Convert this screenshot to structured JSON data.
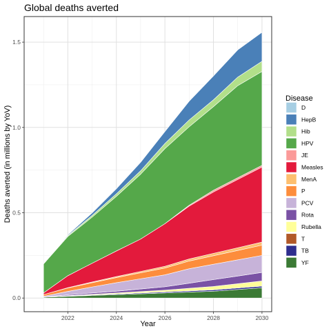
{
  "chart_data": {
    "type": "area",
    "stacked": true,
    "title": "Global deaths averted",
    "xlabel": "Year",
    "ylabel": "Deaths averted (in millions by YoV)",
    "x": [
      2021,
      2022,
      2023,
      2024,
      2025,
      2026,
      2027,
      2028,
      2029,
      2030
    ],
    "xlim": [
      2020.2,
      2030.4
    ],
    "ylim": [
      -0.08,
      1.65
    ],
    "x_ticks": [
      2022,
      2024,
      2026,
      2028,
      2030
    ],
    "y_ticks": [
      0.0,
      0.5,
      1.0,
      1.5
    ],
    "y_tick_labels": [
      "0.0",
      "0.5",
      "1.0",
      "1.5"
    ],
    "grid": true,
    "legend": {
      "title": "Disease",
      "position": "right"
    },
    "series": [
      {
        "name": "D",
        "color": "#a6cee3",
        "values": [
          0,
          0,
          0,
          0,
          0,
          0,
          0,
          0,
          0,
          0
        ]
      },
      {
        "name": "HepB",
        "color": "#4a80b8",
        "values": [
          0,
          0.005,
          0.015,
          0.03,
          0.05,
          0.07,
          0.11,
          0.14,
          0.16,
          0.17
        ]
      },
      {
        "name": "Hib",
        "color": "#b2df8a",
        "values": [
          0,
          0.005,
          0.01,
          0.015,
          0.02,
          0.03,
          0.04,
          0.04,
          0.05,
          0.06
        ]
      },
      {
        "name": "HPV",
        "color": "#55a84a",
        "values": [
          0.17,
          0.23,
          0.27,
          0.32,
          0.38,
          0.44,
          0.46,
          0.49,
          0.54,
          0.55
        ]
      },
      {
        "name": "JE",
        "color": "#fb9a99",
        "values": [
          0,
          0,
          0,
          0,
          0,
          0,
          0.005,
          0.01,
          0.01,
          0.01
        ]
      },
      {
        "name": "Measles",
        "color": "#e31a3c",
        "values": [
          0.01,
          0.07,
          0.11,
          0.15,
          0.19,
          0.25,
          0.31,
          0.36,
          0.4,
          0.44
        ]
      },
      {
        "name": "MenA",
        "color": "#fdbf6f",
        "values": [
          0,
          0.002,
          0.004,
          0.006,
          0.008,
          0.01,
          0.012,
          0.014,
          0.016,
          0.018
        ]
      },
      {
        "name": "P",
        "color": "#fd8d3c",
        "values": [
          0.01,
          0.02,
          0.025,
          0.03,
          0.035,
          0.04,
          0.045,
          0.05,
          0.055,
          0.06
        ]
      },
      {
        "name": "PCV",
        "color": "#c7b3d9",
        "values": [
          0.005,
          0.02,
          0.035,
          0.05,
          0.06,
          0.07,
          0.085,
          0.09,
          0.095,
          0.1
        ]
      },
      {
        "name": "Rota",
        "color": "#7a52a5",
        "values": [
          0,
          0.005,
          0.008,
          0.01,
          0.015,
          0.02,
          0.03,
          0.04,
          0.045,
          0.05
        ]
      },
      {
        "name": "Rubella",
        "color": "#ffff99",
        "values": [
          0,
          0.002,
          0.004,
          0.006,
          0.008,
          0.01,
          0.015,
          0.02,
          0.025,
          0.03
        ]
      },
      {
        "name": "T",
        "color": "#b15928",
        "values": [
          0,
          0,
          0,
          0,
          0,
          0,
          0,
          0,
          0,
          0
        ]
      },
      {
        "name": "TB",
        "color": "#2e2e8e",
        "values": [
          0,
          0.002,
          0.003,
          0.004,
          0.005,
          0.006,
          0.007,
          0.008,
          0.009,
          0.01
        ]
      },
      {
        "name": "YF",
        "color": "#3b7a35",
        "values": [
          0.005,
          0.01,
          0.015,
          0.02,
          0.025,
          0.03,
          0.035,
          0.04,
          0.05,
          0.06
        ]
      }
    ]
  }
}
